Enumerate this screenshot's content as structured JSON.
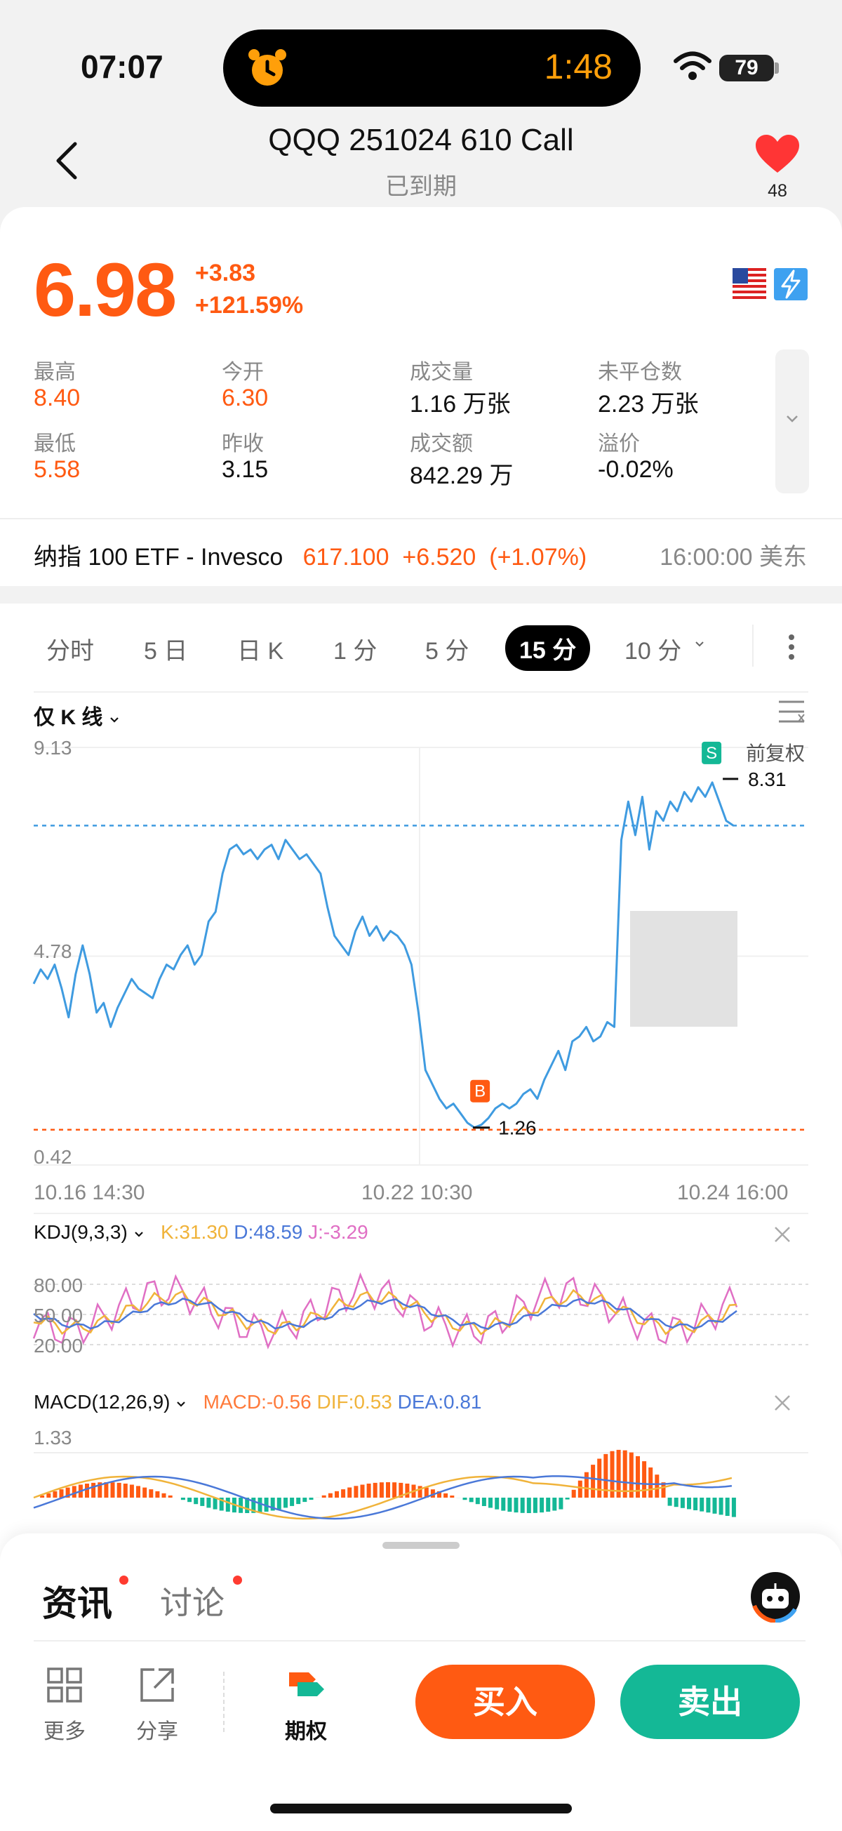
{
  "status_bar": {
    "time": "07:07",
    "timer": "1:48",
    "battery": "79"
  },
  "header": {
    "title": "QQQ 251024 610 Call",
    "subtitle": "已到期",
    "favorite_count": "48"
  },
  "quote": {
    "price": "6.98",
    "change": "+3.83",
    "change_pct": "+121.59%",
    "stats": [
      {
        "label": "最高",
        "value": "8.40",
        "tone": "orange"
      },
      {
        "label": "今开",
        "value": "6.30",
        "tone": "orange"
      },
      {
        "label": "成交量",
        "value": "1.16 万张",
        "tone": "dark"
      },
      {
        "label": "未平仓数",
        "value": "2.23 万张",
        "tone": "dark"
      },
      {
        "label": "最低",
        "value": "5.58",
        "tone": "orange"
      },
      {
        "label": "昨收",
        "value": "3.15",
        "tone": "dark"
      },
      {
        "label": "成交额",
        "value": "842.29 万",
        "tone": "dark"
      },
      {
        "label": "溢价",
        "value": "-0.02%",
        "tone": "dark"
      }
    ]
  },
  "underlying": {
    "name": "纳指 100 ETF - Invesco",
    "price": "617.100",
    "change": "+6.520",
    "change_pct": "(+1.07%)",
    "time": "16:00:00 美东"
  },
  "chart_tabs": [
    {
      "label": "分时",
      "active": false
    },
    {
      "label": "5 日",
      "active": false
    },
    {
      "label": "日 K",
      "active": false
    },
    {
      "label": "1 分",
      "active": false
    },
    {
      "label": "5 分",
      "active": false
    },
    {
      "label": "15 分",
      "active": true
    },
    {
      "label": "10 分",
      "active": false
    }
  ],
  "chart_options": {
    "mode": "仅 K 线",
    "adjust": "前复权"
  },
  "chart_data": {
    "type": "line",
    "yticks": [
      "9.13",
      "4.78",
      "0.42"
    ],
    "ylim": [
      0.42,
      9.13
    ],
    "xticks": [
      "10.16 14:30",
      "10.22 10:30",
      "10.24 16:00"
    ],
    "series": [
      {
        "values": [
          4.2,
          4.5,
          4.3,
          4.6,
          4.1,
          3.5,
          4.4,
          5.0,
          4.4,
          3.6,
          3.8,
          3.3,
          3.7,
          4.0,
          4.3,
          4.1,
          4.0,
          3.9,
          4.3,
          4.6,
          4.5,
          4.8,
          5.0,
          4.6,
          4.8,
          5.5,
          5.7,
          6.5,
          7.0,
          7.1,
          6.9,
          7.0,
          6.8,
          7.0,
          7.1,
          6.8,
          7.2,
          7.0,
          6.8,
          6.9,
          6.7,
          6.5,
          5.8,
          5.2,
          5.0,
          4.8,
          5.3,
          5.6,
          5.2,
          5.4,
          5.1,
          5.3,
          5.2,
          5.0,
          4.6,
          3.6,
          2.4,
          2.1,
          1.8,
          1.6,
          1.7,
          1.5,
          1.3,
          1.2,
          1.26,
          1.4,
          1.6,
          1.7,
          1.6,
          1.7,
          1.9,
          2.0,
          1.8,
          2.2,
          2.5,
          2.8,
          2.4,
          3.0,
          3.1,
          3.3,
          3.0,
          3.1,
          3.4,
          3.3,
          7.2,
          8.0,
          7.3,
          8.1,
          7.0,
          7.8,
          7.6,
          8.0,
          7.8,
          8.2,
          8.0,
          8.3,
          8.1,
          8.4,
          8.0,
          7.6,
          7.5
        ]
      }
    ],
    "markers": [
      {
        "label": "B",
        "value": "1.26"
      },
      {
        "label": "S",
        "value": "8.31"
      }
    ]
  },
  "kdj": {
    "title": "KDJ(9,3,3)",
    "k": "K:31.30",
    "d": "D:48.59",
    "j": "J:-3.29",
    "levels": [
      "80.00",
      "50.00",
      "20.00"
    ]
  },
  "macd": {
    "title": "MACD(12,26,9)",
    "macd": "MACD:-0.56",
    "dif": "DIF:0.53",
    "dea": "DEA:0.81",
    "top": "1.33"
  },
  "colors": {
    "accent": "#ff5a12",
    "sell": "#14b896",
    "line": "#3f9be0",
    "k": "#f0b33a",
    "d": "#4a78d8",
    "j": "#e06fc4"
  },
  "bottom": {
    "tabs": [
      {
        "label": "资讯"
      },
      {
        "label": "讨论"
      }
    ],
    "tools": [
      {
        "label": "更多"
      },
      {
        "label": "分享"
      },
      {
        "label": "期权"
      }
    ],
    "buy": "买入",
    "sell": "卖出"
  }
}
